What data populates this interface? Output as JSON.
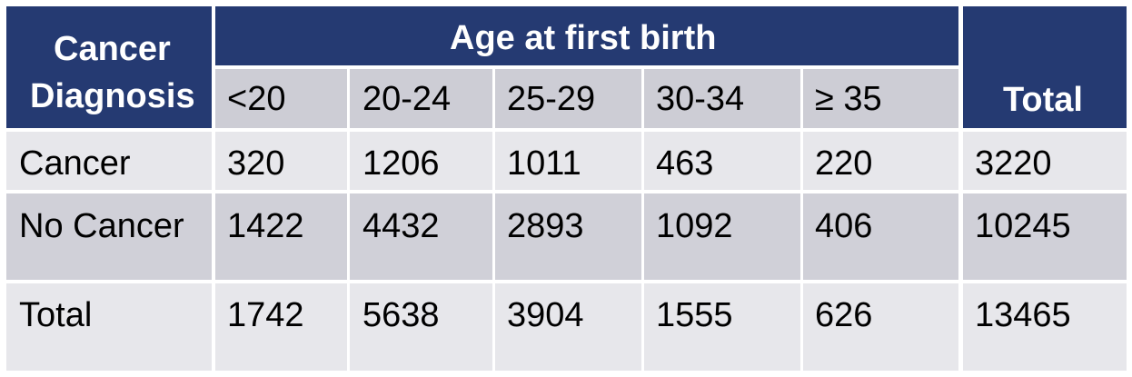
{
  "table": {
    "row_header_label": [
      "Cancer",
      "Diagnosis"
    ],
    "group_header": "Age at first birth",
    "age_groups": [
      "<20",
      "20-24",
      "25-29",
      "30-34",
      "≥ 35"
    ],
    "total_label": "Total",
    "rows": [
      {
        "label": "Cancer",
        "values": [
          "320",
          "1206",
          "1011",
          "463",
          "220"
        ],
        "total": "3220"
      },
      {
        "label": "No Cancer",
        "values": [
          "1422",
          "4432",
          "2893",
          "1092",
          "406"
        ],
        "total": "10245"
      },
      {
        "label": "Total",
        "values": [
          "1742",
          "5638",
          "3904",
          "1555",
          "626"
        ],
        "total": "13465"
      }
    ]
  }
}
